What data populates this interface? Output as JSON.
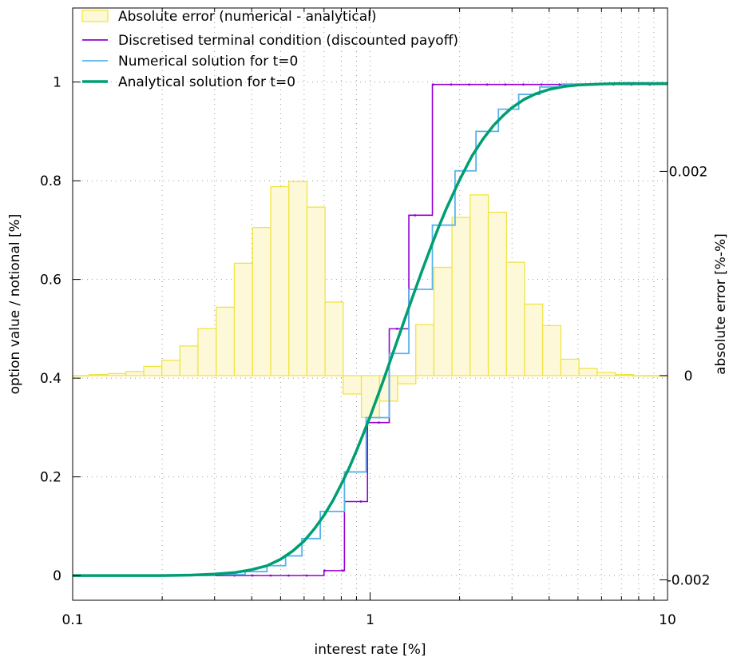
{
  "chart_data": {
    "type": "line",
    "xlabel": "interest rate [%]",
    "ylabel": "option value / notional [%]",
    "y2label": "absolute error [%-%]",
    "xscale": "log",
    "xlim": [
      0.1,
      10
    ],
    "ylim": [
      -0.05,
      1.15
    ],
    "y2lim": [
      -0.0022,
      0.0036
    ],
    "grid": true,
    "legend_position": "top-left",
    "x_ticks": [
      {
        "value": 0.1,
        "label": "0.1"
      },
      {
        "value": 1,
        "label": "1"
      },
      {
        "value": 10,
        "label": "10"
      }
    ],
    "y_ticks": [
      {
        "value": 0,
        "label": "0"
      },
      {
        "value": 0.2,
        "label": "0.2"
      },
      {
        "value": 0.4,
        "label": "0.4"
      },
      {
        "value": 0.6,
        "label": "0.6"
      },
      {
        "value": 0.8,
        "label": "0.8"
      },
      {
        "value": 1,
        "label": "1"
      }
    ],
    "y2_ticks": [
      {
        "value": -0.002,
        "label": "-0.002"
      },
      {
        "value": 0,
        "label": "0"
      },
      {
        "value": 0.002,
        "label": "0.002"
      }
    ],
    "series": [
      {
        "name": "Absolute error (numerical - analytical)",
        "kind": "error-bars",
        "axis": "y2",
        "color": "#f0e442",
        "fill": "#fdf9d8",
        "x": [
          0.106,
          0.122,
          0.141,
          0.162,
          0.186,
          0.214,
          0.246,
          0.283,
          0.326,
          0.375,
          0.432,
          0.497,
          0.572,
          0.658,
          0.757,
          0.871,
          1.003,
          1.154,
          1.328,
          1.528,
          1.758,
          2.023,
          2.328,
          2.679,
          3.083,
          3.548,
          4.083,
          4.698,
          5.407,
          6.222,
          7.16,
          8.24,
          9.482
        ],
        "widths_log": 0.0611,
        "values": [
          0.0,
          1e-05,
          2e-05,
          4e-05,
          9e-05,
          0.00015,
          0.00029,
          0.00046,
          0.00067,
          0.0011,
          0.00145,
          0.00185,
          0.0019,
          0.00165,
          0.00072,
          -0.00018,
          -0.00041,
          -0.00025,
          -8e-05,
          0.0005,
          0.00106,
          0.00155,
          0.00177,
          0.0016,
          0.00111,
          0.0007,
          0.00049,
          0.00016,
          7e-05,
          3e-05,
          1e-05,
          0.0,
          0.0
        ]
      },
      {
        "name": "Discretised terminal condition (discounted payoff)",
        "kind": "step",
        "axis": "y",
        "color": "#9400d3",
        "x": [
          0.1,
          0.3,
          0.7,
          0.82,
          0.98,
          1.16,
          1.35,
          1.62,
          10
        ],
        "values": [
          0.0,
          0.0,
          0.01,
          0.15,
          0.31,
          0.5,
          0.73,
          0.995,
          0.995
        ]
      },
      {
        "name": "Numerical solution for t=0",
        "kind": "step",
        "axis": "y",
        "color": "#56b4e9",
        "x": [
          0.1,
          0.3,
          0.38,
          0.45,
          0.52,
          0.59,
          0.68,
          0.82,
          0.97,
          1.16,
          1.35,
          1.62,
          1.93,
          2.27,
          2.7,
          3.16,
          3.72,
          4.44,
          10
        ],
        "values": [
          0.0,
          0.002,
          0.008,
          0.02,
          0.04,
          0.075,
          0.13,
          0.21,
          0.32,
          0.45,
          0.58,
          0.71,
          0.82,
          0.9,
          0.945,
          0.975,
          0.99,
          0.996,
          0.996
        ]
      },
      {
        "name": "Analytical solution for t=0",
        "kind": "line",
        "axis": "y",
        "color": "#009e73",
        "x": [
          0.1,
          0.15,
          0.2,
          0.25,
          0.3,
          0.35,
          0.4,
          0.45,
          0.5,
          0.55,
          0.6,
          0.65,
          0.7,
          0.75,
          0.8,
          0.85,
          0.9,
          0.95,
          1.0,
          1.1,
          1.2,
          1.3,
          1.4,
          1.5,
          1.6,
          1.7,
          1.8,
          2.0,
          2.2,
          2.4,
          2.6,
          2.8,
          3.0,
          3.3,
          3.6,
          4.0,
          4.5,
          5.0,
          6.0,
          7.0,
          8.0,
          10.0
        ],
        "values": [
          0.0,
          0.0,
          0.0,
          0.001,
          0.003,
          0.006,
          0.012,
          0.02,
          0.033,
          0.05,
          0.07,
          0.095,
          0.122,
          0.152,
          0.185,
          0.218,
          0.253,
          0.288,
          0.322,
          0.39,
          0.455,
          0.515,
          0.57,
          0.62,
          0.665,
          0.706,
          0.742,
          0.802,
          0.85,
          0.885,
          0.912,
          0.932,
          0.948,
          0.965,
          0.976,
          0.985,
          0.991,
          0.994,
          0.996,
          0.997,
          0.997,
          0.997
        ]
      }
    ]
  }
}
